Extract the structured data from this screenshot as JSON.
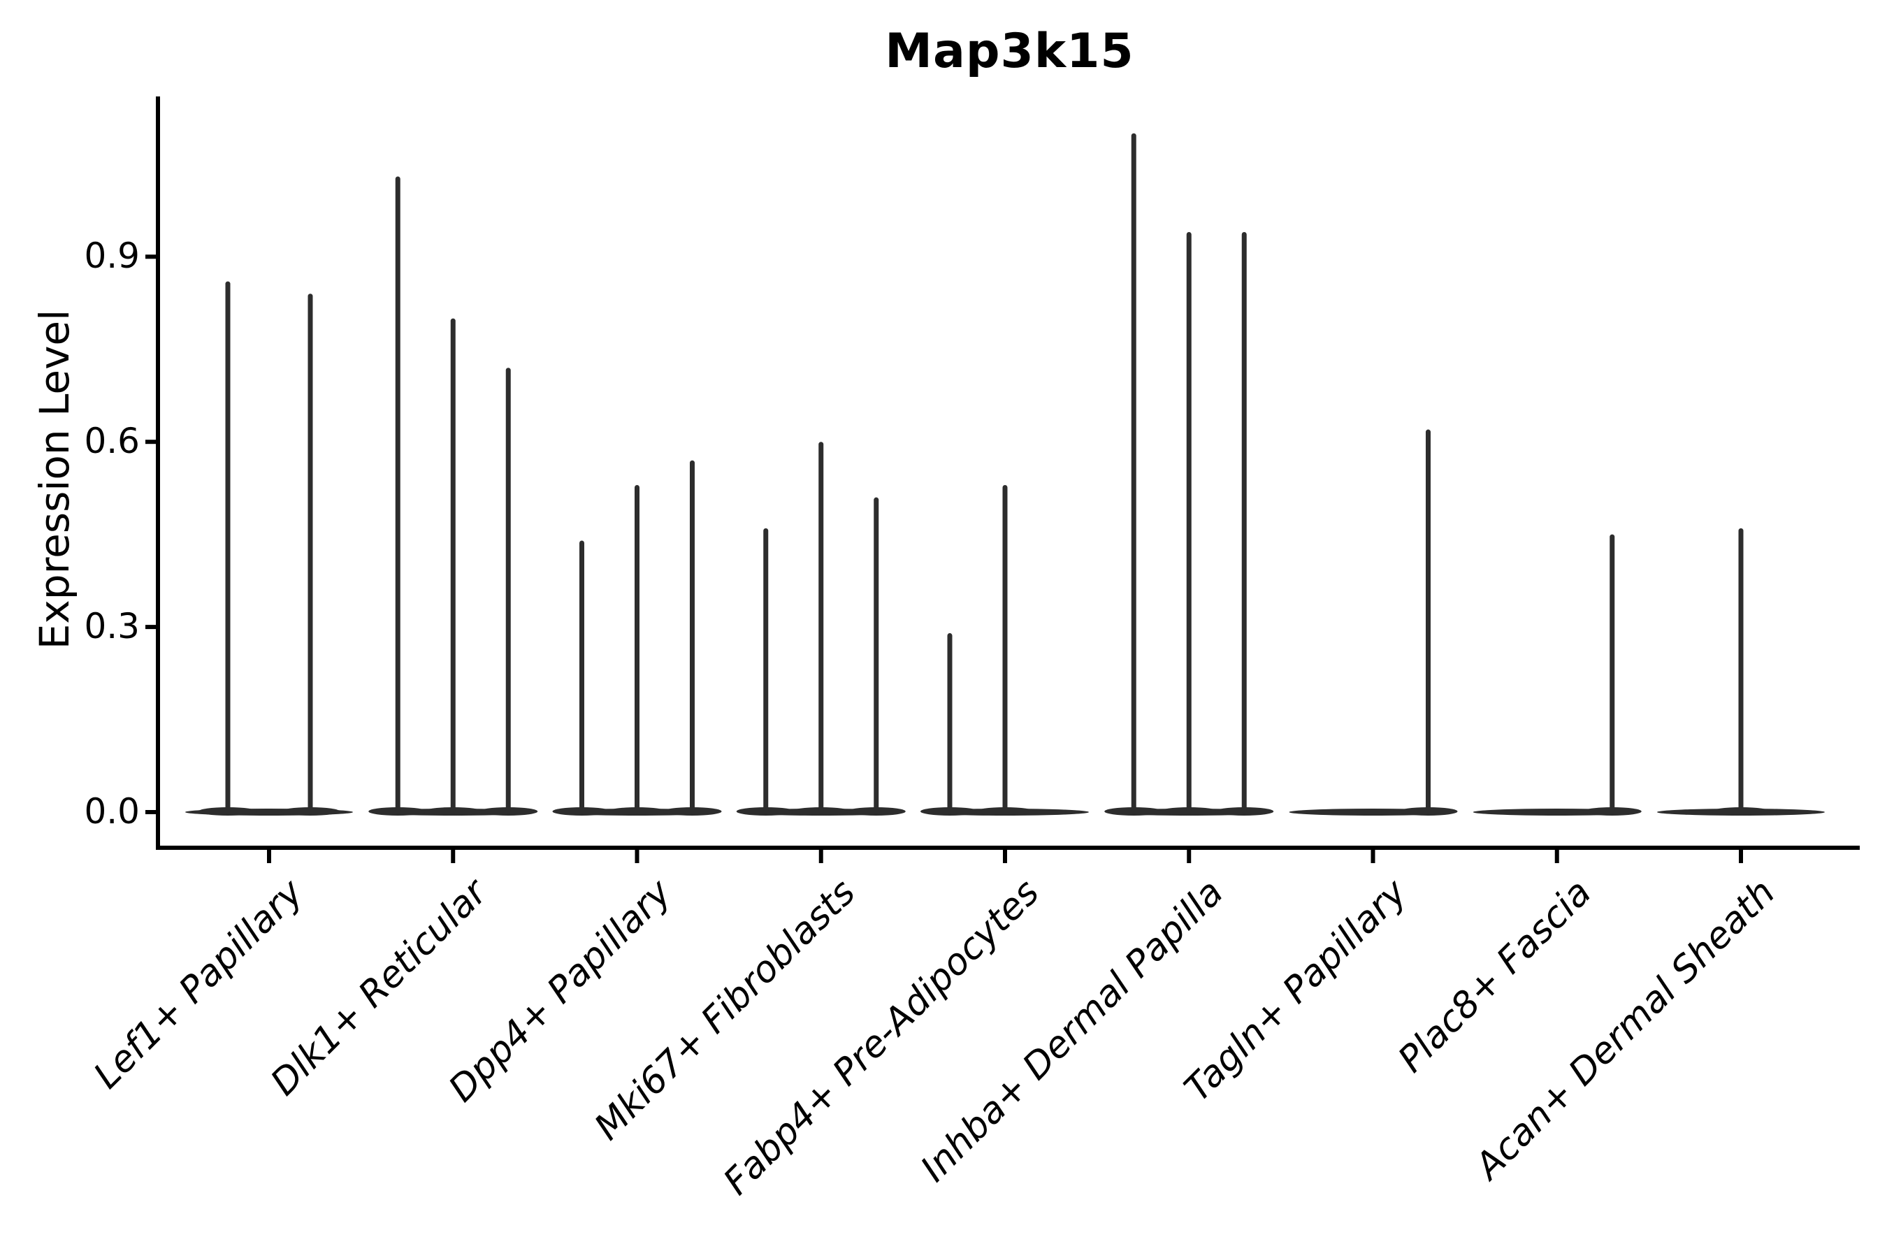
{
  "figure": {
    "title": "Map3k15"
  },
  "chart_data": {
    "type": "violin",
    "title": "Map3k15",
    "xlabel": "",
    "ylabel": "Expression Level",
    "ylim": [
      -0.05,
      1.16
    ],
    "yticks": [
      0.0,
      0.3,
      0.6,
      0.9
    ],
    "ytick_labels": [
      "0.0",
      "0.3",
      "0.6",
      "0.9"
    ],
    "grid": false,
    "legend": "none",
    "categories": [
      "Lef1+ Papillary",
      "Dlk1+ Reticular",
      "Dpp4+ Papillary",
      "Mki67+ Fibroblasts",
      "Fabp4+ Pre-Adipocytes",
      "Inhba+ Dermal Papilla",
      "Tagln+ Papillary",
      "Plac8+ Fascia",
      "Acan+ Dermal Sheath"
    ],
    "groups": [
      {
        "category": "Lef1+ Papillary",
        "violin_maxima": [
          0.86,
          0.84
        ]
      },
      {
        "category": "Dlk1+ Reticular",
        "violin_maxima": [
          1.03,
          0.8,
          0.72
        ]
      },
      {
        "category": "Dpp4+ Papillary",
        "violin_maxima": [
          0.44,
          0.53,
          0.57
        ]
      },
      {
        "category": "Mki67+ Fibroblasts",
        "violin_maxima": [
          0.46,
          0.6,
          0.51
        ]
      },
      {
        "category": "Fabp4+ Pre-Adipocytes",
        "violin_maxima": [
          0.29,
          0.53,
          0.0
        ]
      },
      {
        "category": "Inhba+ Dermal Papilla",
        "violin_maxima": [
          1.1,
          0.94,
          0.94
        ]
      },
      {
        "category": "Tagln+ Papillary",
        "violin_maxima": [
          0.0,
          0.0,
          0.62
        ]
      },
      {
        "category": "Plac8+ Fascia",
        "violin_maxima": [
          0.0,
          0.0,
          0.45
        ]
      },
      {
        "category": "Acan+ Dermal Sheath",
        "violin_maxima": [
          0.0,
          0.46,
          0.0
        ]
      }
    ],
    "style": {
      "violin_color": "#2d2d2d",
      "axis_color": "#000000",
      "text_color": "#000000",
      "background": "#ffffff"
    }
  }
}
